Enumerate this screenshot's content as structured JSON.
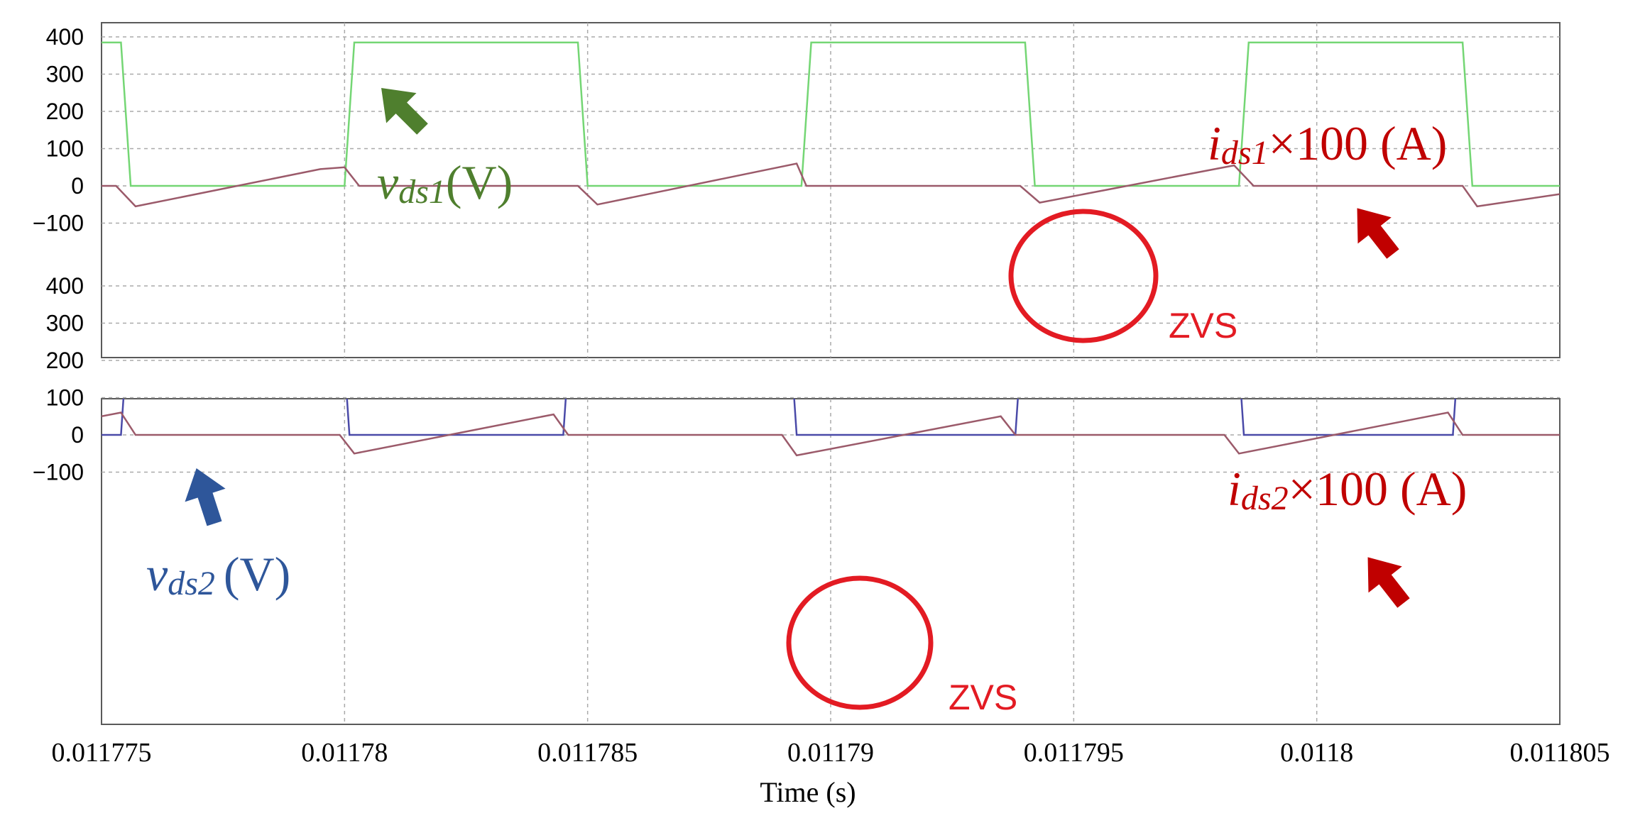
{
  "chart_data": {
    "type": "line",
    "xlabel": "Time (s)",
    "xlim": [
      0.011775,
      0.011805
    ],
    "x_ticks": [
      "0.011775",
      "0.01178",
      "0.011785",
      "0.01179",
      "0.011795",
      "0.0118",
      "0.011805"
    ],
    "x_tick_values": [
      0.011775,
      0.01178,
      0.011785,
      0.01179,
      0.011795,
      0.0118,
      0.011805
    ],
    "grid": true,
    "panels": [
      {
        "ylim": [
          -150,
          440
        ],
        "y_ticks": [
          "400",
          "300",
          "200",
          "100",
          "0",
          "−100"
        ],
        "y_tick_values": [
          400,
          300,
          200,
          100,
          0,
          -100
        ],
        "series": [
          {
            "key": "vds1",
            "color": "#74d674",
            "x": [
              0.011775,
              0.0117754,
              0.0117756,
              0.01178,
              0.0117802,
              0.0117848,
              0.011785,
              0.0117894,
              0.0117896,
              0.011794,
              0.0117942,
              0.0117984,
              0.0117986,
              0.011803,
              0.0118032,
              0.011805
            ],
            "values": [
              385,
              385,
              0,
              0,
              385,
              385,
              0,
              0,
              385,
              385,
              0,
              0,
              385,
              385,
              0,
              0
            ]
          },
          {
            "key": "ids1",
            "color": "#9b5a6a",
            "x": [
              0.011775,
              0.0117753,
              0.0117757,
              0.0117795,
              0.01178,
              0.0117803,
              0.0117848,
              0.0117852,
              0.0117893,
              0.0117895,
              0.0117939,
              0.0117943,
              0.0117983,
              0.0117987,
              0.011803,
              0.0118033,
              0.011805
            ],
            "values": [
              0,
              0,
              -55,
              45,
              50,
              0,
              0,
              -50,
              60,
              0,
              0,
              -45,
              55,
              0,
              0,
              -55,
              -22
            ]
          }
        ],
        "annotations": {
          "voltage_sub": "ds1",
          "voltage_unit": "(V)",
          "current_sub": "ds1",
          "current_rest": "×100 (A)",
          "zvs": "ZVS"
        }
      },
      {
        "ylim": [
          -150,
          440
        ],
        "y_ticks": [
          "400",
          "300",
          "200",
          "100",
          "0",
          "−100"
        ],
        "y_tick_values": [
          400,
          300,
          200,
          100,
          0,
          -100
        ],
        "series": [
          {
            "key": "vds2",
            "color": "#4a4aa8",
            "x": [
              0.011775,
              0.0117754,
              0.0117756,
              0.0117799,
              0.0117801,
              0.0117845,
              0.0117847,
              0.0117891,
              0.0117893,
              0.0117938,
              0.011794,
              0.0117983,
              0.0117985,
              0.0118028,
              0.011803,
              0.011805
            ],
            "values": [
              0,
              0,
              385,
              385,
              0,
              0,
              385,
              385,
              0,
              0,
              385,
              385,
              0,
              0,
              385,
              385
            ]
          },
          {
            "key": "ids2",
            "color": "#9b5a6a",
            "x": [
              0.011775,
              0.0117754,
              0.0117757,
              0.0117799,
              0.0117802,
              0.0117843,
              0.0117846,
              0.011789,
              0.0117893,
              0.0117935,
              0.0117938,
              0.0117981,
              0.0117984,
              0.0118027,
              0.011803,
              0.011805
            ],
            "values": [
              50,
              60,
              0,
              0,
              -50,
              55,
              0,
              0,
              -55,
              50,
              0,
              0,
              -50,
              60,
              0,
              0
            ]
          }
        ],
        "annotations": {
          "voltage_sub": "ds2",
          "voltage_unit": "(V)",
          "current_sub": "ds2",
          "current_rest": "×100 (A)",
          "zvs": "ZVS"
        }
      }
    ]
  },
  "colors": {
    "voltage1_label": "#4f7f2e",
    "voltage2_label": "#2e569a",
    "current_label": "#c00000",
    "zvs": "#e31b23",
    "grid": "#aaaaaa",
    "axis": "#5a5a5a"
  }
}
